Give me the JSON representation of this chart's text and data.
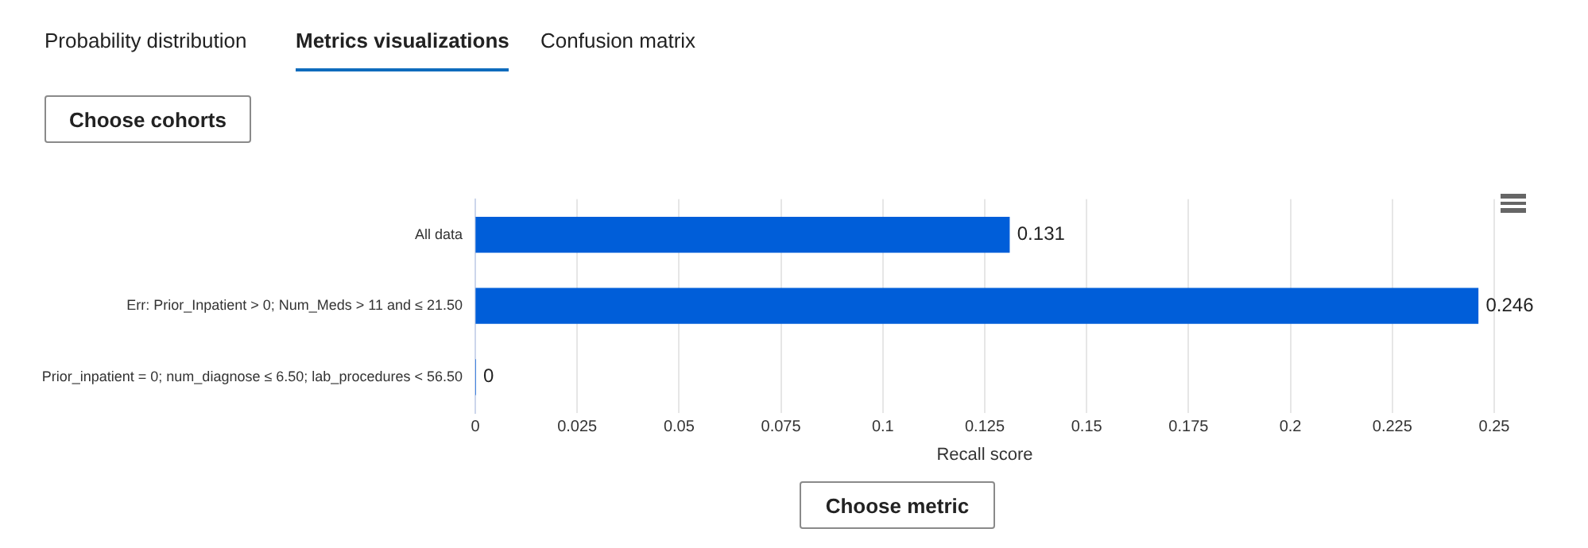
{
  "chart_data": {
    "type": "bar",
    "orientation": "horizontal",
    "categories": [
      "All data",
      "Err: Prior_Inpatient > 0; Num_Meds > 11 and ≤ 21.50",
      "Prior_inpatient = 0; num_diagnose ≤ 6.50; lab_procedures < 56.50"
    ],
    "values": [
      0.131,
      0.246,
      0
    ],
    "value_labels": [
      "0.131",
      "0.246",
      "0"
    ],
    "color": "#005ed9",
    "xlabel": "Recall score",
    "xlim": [
      0,
      0.25
    ],
    "xticks": [
      0,
      0.025,
      0.05,
      0.075,
      0.1,
      0.125,
      0.15,
      0.175,
      0.2,
      0.225,
      0.25
    ],
    "grid": "x",
    "annotations": [
      "Probability distribution",
      "Metrics visualizations",
      "Confusion matrix",
      "Choose cohorts",
      "Choose metric"
    ]
  }
}
